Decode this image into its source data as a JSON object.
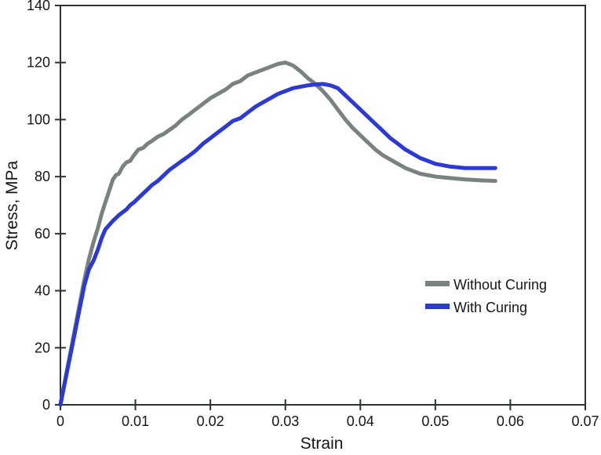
{
  "chart_data": {
    "type": "line",
    "title": "",
    "xlabel": "Strain",
    "ylabel": "Stress, MPa",
    "xlim": [
      0,
      0.07
    ],
    "ylim": [
      0,
      140
    ],
    "grid": false,
    "frame": true,
    "legend_position": "inside-right-middle",
    "axis_color": "#2d3232",
    "text_color": "#161616",
    "background_color": "#ffffff",
    "x_tick_values": [
      0,
      0.01,
      0.02,
      0.03,
      0.04,
      0.05,
      0.06,
      0.07
    ],
    "x_tick_labels": [
      "0",
      "0.01",
      "0.02",
      "0.03",
      "0.04",
      "0.05",
      "0.06",
      "0.07"
    ],
    "y_tick_values": [
      0,
      20,
      40,
      60,
      80,
      100,
      120,
      140
    ],
    "y_tick_labels": [
      "0",
      "20",
      "40",
      "60",
      "80",
      "100",
      "120",
      "140"
    ],
    "series": [
      {
        "name": "Without Curing",
        "color": "#78837F",
        "line_width": 5,
        "x": [
          0,
          0.0008,
          0.0016,
          0.0024,
          0.0032,
          0.0038,
          0.0044,
          0.005,
          0.0055,
          0.006,
          0.0065,
          0.007,
          0.0074,
          0.0078,
          0.0083,
          0.0088,
          0.0093,
          0.0098,
          0.0104,
          0.011,
          0.0116,
          0.0122,
          0.013,
          0.0138,
          0.0146,
          0.0154,
          0.0162,
          0.017,
          0.018,
          0.019,
          0.02,
          0.021,
          0.022,
          0.023,
          0.024,
          0.025,
          0.026,
          0.027,
          0.028,
          0.029,
          0.03,
          0.031,
          0.032,
          0.033,
          0.034,
          0.035,
          0.036,
          0.037,
          0.038,
          0.039,
          0.04,
          0.041,
          0.042,
          0.043,
          0.044,
          0.045,
          0.046,
          0.047,
          0.048,
          0.049,
          0.05,
          0.052,
          0.054,
          0.056,
          0.058
        ],
        "y": [
          0,
          11,
          22,
          33,
          44,
          51,
          57,
          62,
          67,
          71,
          75,
          79,
          80.5,
          81,
          83.5,
          85,
          85.5,
          87.5,
          89.5,
          90,
          91.5,
          92.5,
          94,
          95,
          96.5,
          98,
          100,
          101.5,
          103.5,
          105.5,
          107.5,
          109,
          110.5,
          112.5,
          113.5,
          115.5,
          116.5,
          117.5,
          118.5,
          119.5,
          120,
          119,
          117,
          114.5,
          112.5,
          110,
          107,
          103.5,
          100,
          97,
          94.5,
          92,
          89.5,
          87.5,
          86,
          84.5,
          83,
          82,
          81,
          80.5,
          80,
          79.5,
          79,
          78.7,
          78.5
        ]
      },
      {
        "name": "With Curing",
        "color": "#2B3AD6",
        "line_width": 5,
        "x": [
          0,
          0.0008,
          0.0016,
          0.0024,
          0.0032,
          0.0038,
          0.0044,
          0.005,
          0.0055,
          0.006,
          0.0065,
          0.007,
          0.0074,
          0.0078,
          0.0083,
          0.0088,
          0.0093,
          0.0098,
          0.0104,
          0.011,
          0.0116,
          0.0122,
          0.013,
          0.0138,
          0.0146,
          0.0154,
          0.0162,
          0.017,
          0.018,
          0.019,
          0.02,
          0.021,
          0.022,
          0.023,
          0.024,
          0.025,
          0.026,
          0.027,
          0.028,
          0.029,
          0.03,
          0.031,
          0.032,
          0.033,
          0.034,
          0.035,
          0.036,
          0.037,
          0.038,
          0.039,
          0.04,
          0.041,
          0.042,
          0.043,
          0.044,
          0.045,
          0.046,
          0.047,
          0.048,
          0.049,
          0.05,
          0.052,
          0.054,
          0.056,
          0.058
        ],
        "y": [
          0,
          10.5,
          21,
          31.5,
          42,
          47.5,
          50.5,
          54.5,
          58.5,
          61.5,
          63,
          64.5,
          65.5,
          66.5,
          67.5,
          68.5,
          70,
          71,
          72.5,
          74,
          75.5,
          77,
          78.5,
          80.5,
          82.5,
          84,
          85.5,
          87,
          89,
          91.5,
          93.5,
          95.5,
          97.5,
          99.5,
          100.5,
          102.5,
          104.5,
          106,
          107.5,
          109,
          110,
          111,
          111.5,
          112,
          112.3,
          112.5,
          112,
          111,
          108.5,
          106,
          103.5,
          101,
          98.5,
          96,
          93.5,
          91.5,
          89.5,
          88,
          86.5,
          85.5,
          84.5,
          83.5,
          83,
          83,
          83
        ]
      }
    ]
  }
}
